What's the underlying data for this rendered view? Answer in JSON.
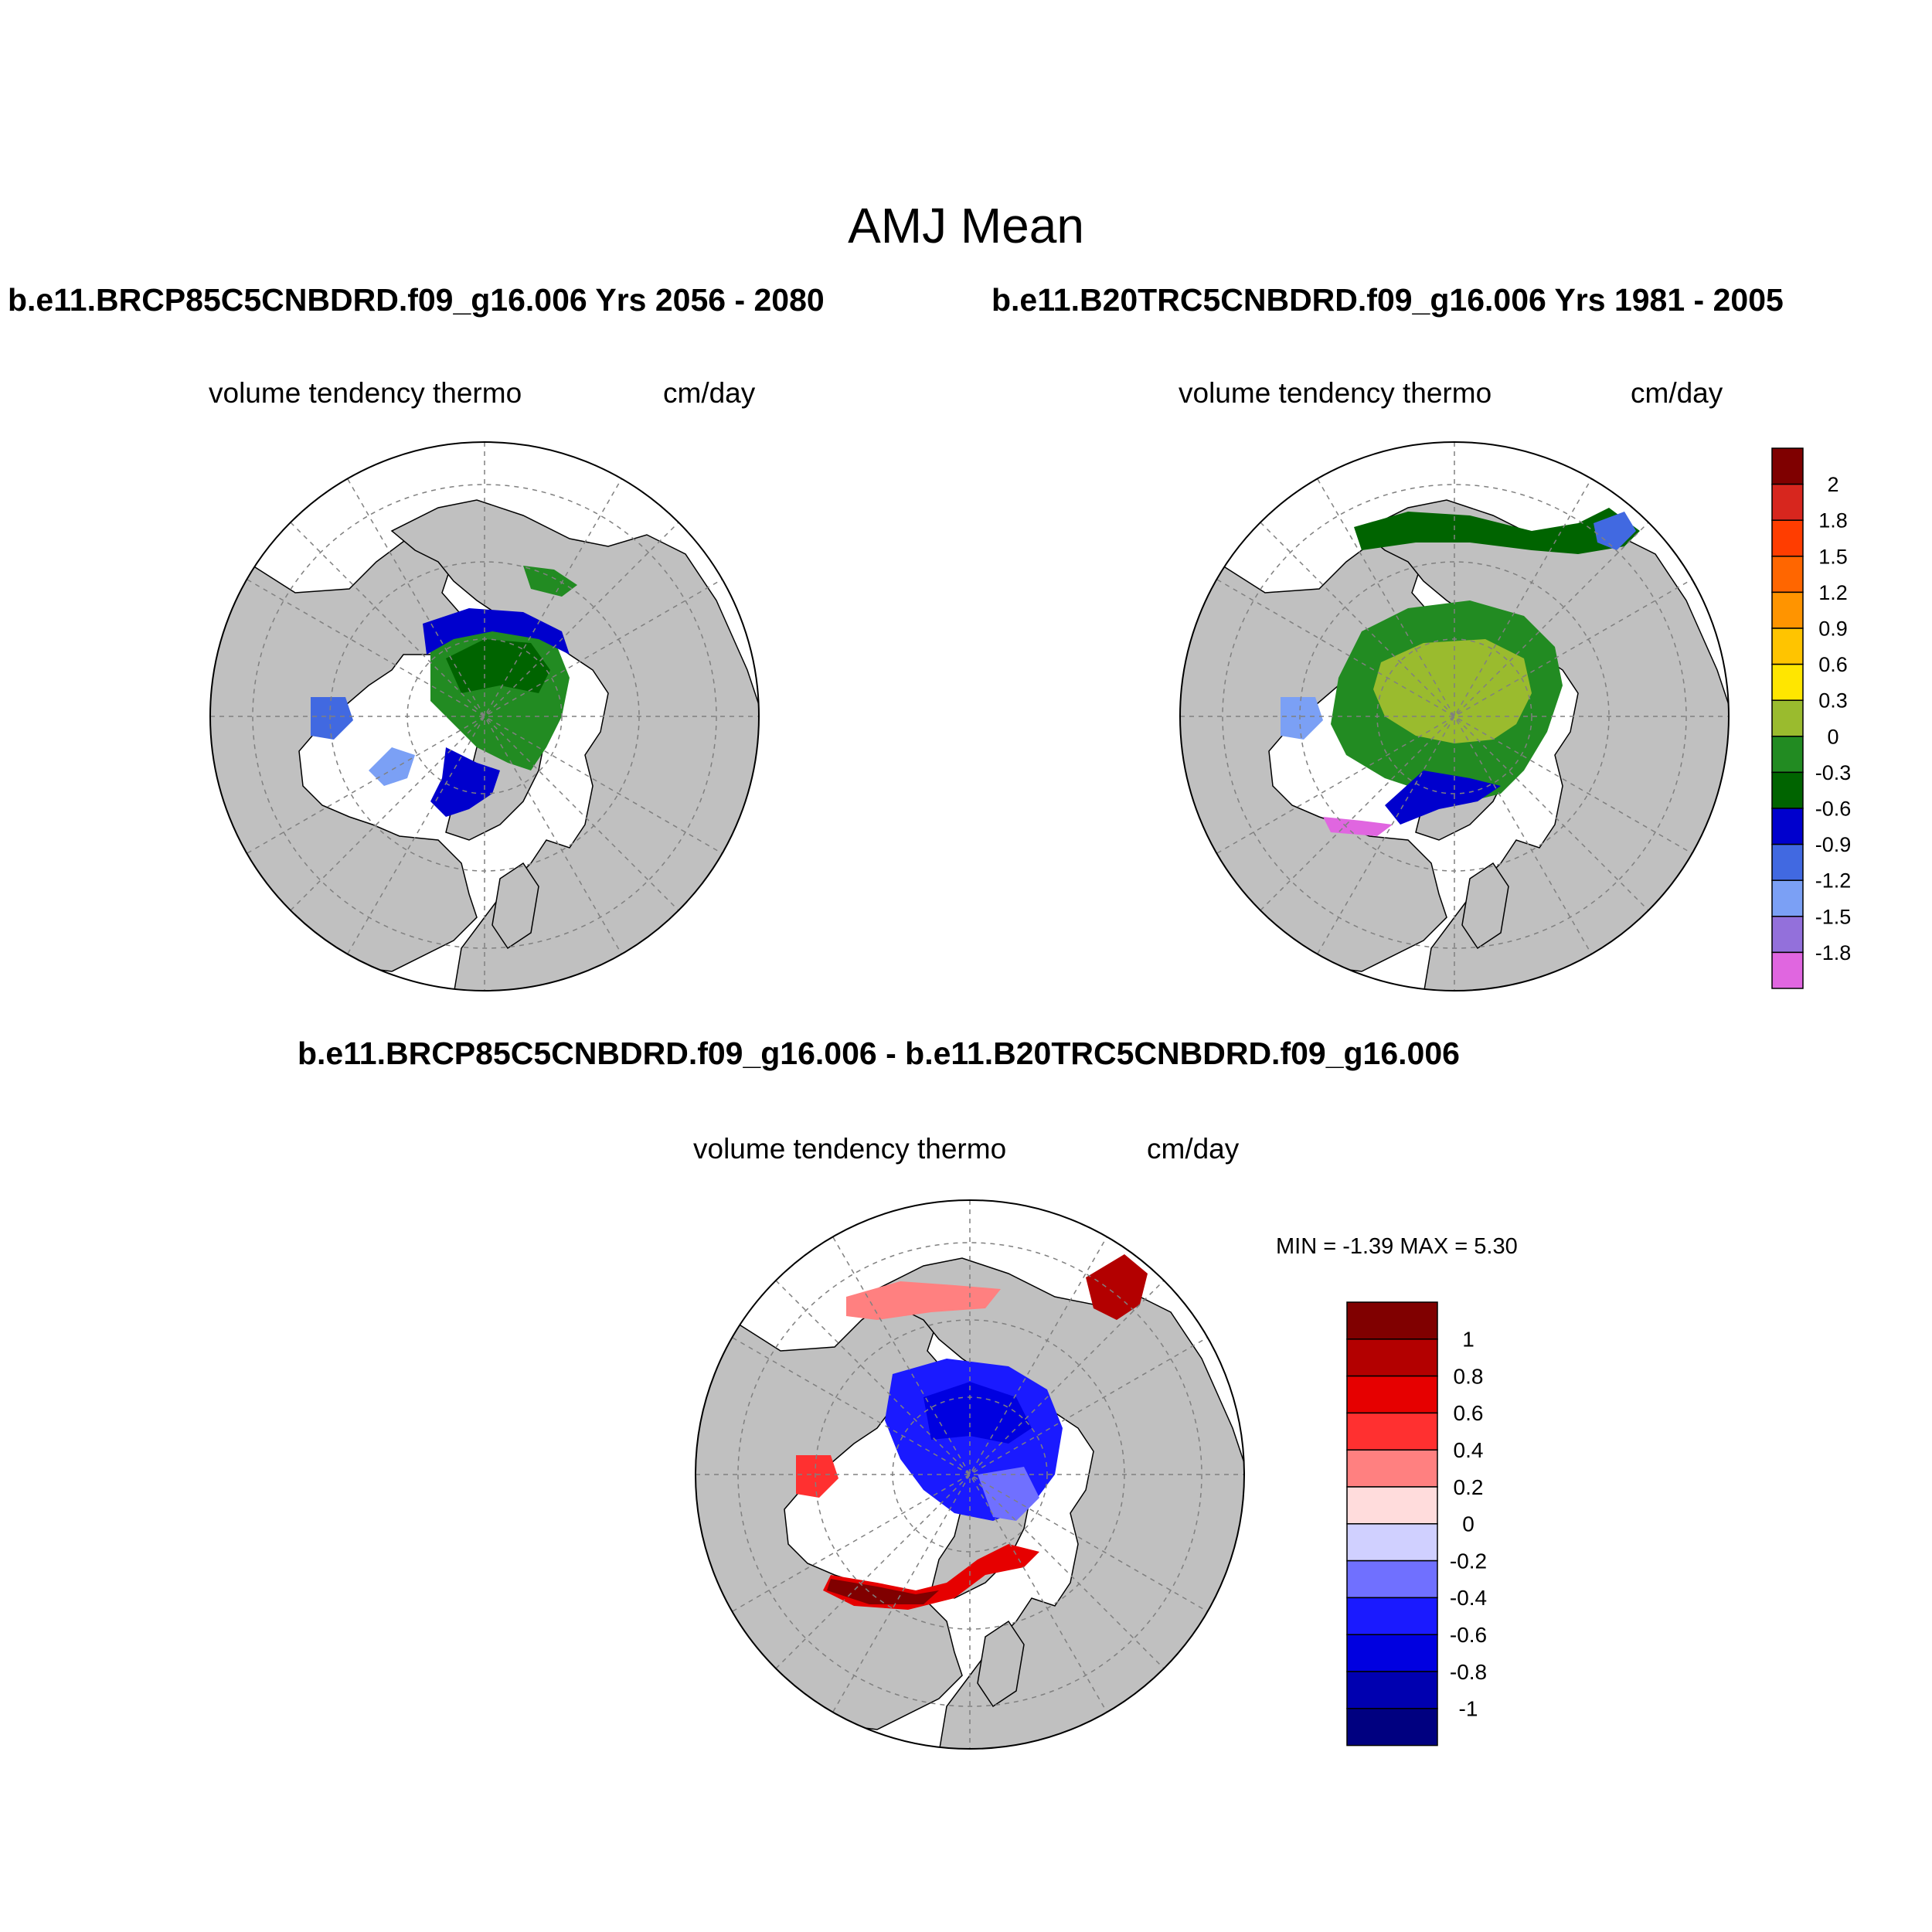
{
  "title": "AMJ Mean",
  "panels": [
    {
      "case_title": "b.e11.BRCP85C5CNBDRD.f09_g16.006  Yrs 2056 - 2080",
      "variable": "volume tendency thermo",
      "units": "cm/day"
    },
    {
      "case_title": "b.e11.B20TRC5CNBDRD.f09_g16.006  Yrs 1981 - 2005",
      "variable": "volume tendency thermo",
      "units": "cm/day"
    },
    {
      "case_title": "b.e11.BRCP85C5CNBDRD.f09_g16.006 - b.e11.B20TRC5CNBDRD.f09_g16.006",
      "variable": "volume tendency thermo",
      "units": "cm/day",
      "minmax": "MIN =  -1.39 MAX =   5.30"
    }
  ],
  "colorbars": {
    "mean": {
      "labels": [
        "2",
        "1.8",
        "1.5",
        "1.2",
        "0.9",
        "0.6",
        "0.3",
        "0",
        "-0.3",
        "-0.6",
        "-0.9",
        "-1.2",
        "-1.5",
        "-1.8"
      ],
      "colors": [
        "#7f0000",
        "#d7261e",
        "#ff3d00",
        "#ff6600",
        "#ff9400",
        "#ffc400",
        "#ffe600",
        "#9abb2e",
        "#228b22",
        "#006400",
        "#0000cd",
        "#4169e1",
        "#7ba0f5",
        "#9370db",
        "#e066e0"
      ]
    },
    "diff": {
      "labels": [
        "1",
        "0.8",
        "0.6",
        "0.4",
        "0.2",
        "0",
        "-0.2",
        "-0.4",
        "-0.6",
        "-0.8",
        "-1"
      ],
      "colors": [
        "#800000",
        "#b30000",
        "#e60000",
        "#ff3030",
        "#ff8080",
        "#ffdcdc",
        "#d0d0ff",
        "#7070ff",
        "#1a1aff",
        "#0000e0",
        "#0000b0",
        "#000080"
      ]
    }
  },
  "chart_data": [
    {
      "type": "heatmap",
      "projection": "north-polar-stereographic",
      "title": "b.e11.BRCP85C5CNBDRD.f09_g16.006  Yrs 2056 - 2080",
      "field": "volume tendency thermo",
      "units": "cm/day",
      "contour_levels": [
        -1.8,
        -1.5,
        -1.2,
        -0.9,
        -0.6,
        -0.3,
        0,
        0.3,
        0.6,
        0.9,
        1.2,
        1.5,
        1.8,
        2
      ]
    },
    {
      "type": "heatmap",
      "projection": "north-polar-stereographic",
      "title": "b.e11.B20TRC5CNBDRD.f09_g16.006  Yrs 1981 - 2005",
      "field": "volume tendency thermo",
      "units": "cm/day",
      "contour_levels": [
        -1.8,
        -1.5,
        -1.2,
        -0.9,
        -0.6,
        -0.3,
        0,
        0.3,
        0.6,
        0.9,
        1.2,
        1.5,
        1.8,
        2
      ]
    },
    {
      "type": "heatmap",
      "projection": "north-polar-stereographic",
      "title": "b.e11.BRCP85C5CNBDRD.f09_g16.006 - b.e11.B20TRC5CNBDRD.f09_g16.006",
      "field": "volume tendency thermo",
      "units": "cm/day",
      "min": -1.39,
      "max": 5.3,
      "contour_levels": [
        -1,
        -0.8,
        -0.6,
        -0.4,
        -0.2,
        0,
        0.2,
        0.4,
        0.6,
        0.8,
        1
      ]
    }
  ]
}
